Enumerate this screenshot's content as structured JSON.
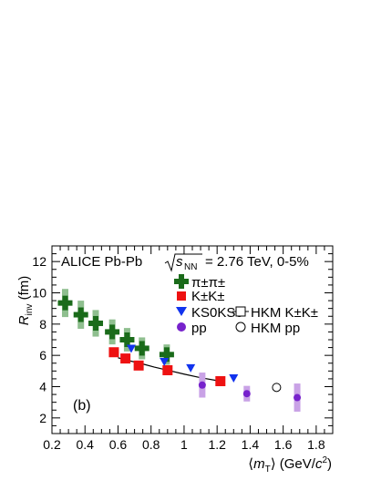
{
  "chart_data": {
    "type": "scatter",
    "title": "ALICE Pb-Pb",
    "energy_label": {
      "prefix": "s",
      "subscript": "NN",
      "value": "= 2.76 TeV, 0-5%"
    },
    "panel_label": "(b)",
    "xlabel": {
      "open": "⟨",
      "var": "m",
      "sub": "T",
      "close": "⟩ (GeV/",
      "unit_c": "c",
      "sup": "2",
      "end": ")"
    },
    "ylabel": {
      "var": "R",
      "sub": "inv",
      "unit": " (fm)"
    },
    "xlim": [
      0.2,
      1.9
    ],
    "ylim": [
      1,
      13
    ],
    "xticks": [
      "0.2",
      "0.4",
      "0.6",
      "0.8",
      "1",
      "1.2",
      "1.4",
      "1.6",
      "1.8"
    ],
    "yticks": [
      "2",
      "4",
      "6",
      "8",
      "10",
      "12"
    ],
    "legend": {
      "pion": "π±π±",
      "kaon_charged": "K±K±",
      "kaon_neutral": "KS0KS0",
      "pp": "pp",
      "hkm_kaon": "HKM K±K±",
      "hkm_pp": "HKM pp"
    },
    "series": [
      {
        "name": "π±π±",
        "marker": "cross",
        "color": "#1a6b1a",
        "syst_color": "#8fbf8f",
        "x": [
          0.28,
          0.375,
          0.465,
          0.565,
          0.655,
          0.745,
          0.895
        ],
        "y": [
          9.35,
          8.6,
          8.05,
          7.5,
          7.0,
          6.45,
          6.05
        ],
        "syst": [
          0.9,
          0.9,
          0.85,
          0.8,
          0.75,
          0.7,
          0.65
        ]
      },
      {
        "name": "K±K±",
        "marker": "square",
        "color": "#ee1111",
        "x": [
          0.575,
          0.645,
          0.725,
          0.9,
          1.22
        ],
        "y": [
          6.2,
          5.8,
          5.35,
          5.05,
          4.35
        ],
        "syst": [
          0.3,
          0.3,
          0.28,
          0.25,
          0.22
        ]
      },
      {
        "name": "KS0KS0",
        "marker": "triangle-down",
        "color": "#1133ee",
        "x": [
          0.68,
          0.88,
          1.04,
          1.3
        ],
        "y": [
          6.45,
          5.6,
          5.2,
          4.55
        ]
      },
      {
        "name": "pp",
        "marker": "circle",
        "color": "#7722cc",
        "syst_color": "#c9a2e6",
        "x": [
          1.11,
          1.38,
          1.685
        ],
        "y": [
          4.1,
          3.55,
          3.3
        ],
        "syst": [
          0.8,
          0.5,
          0.9
        ]
      },
      {
        "name": "HKM K±K±",
        "marker": "open-square",
        "color": "#000000",
        "x": [
          0.6,
          0.64,
          0.7,
          0.76,
          0.82,
          0.9,
          1.0,
          1.1,
          1.22
        ],
        "y": [
          5.85,
          5.72,
          5.58,
          5.42,
          5.25,
          5.05,
          4.8,
          4.57,
          4.35
        ]
      },
      {
        "name": "HKM pp",
        "marker": "open-circle",
        "color": "#000000",
        "x": [
          1.56
        ],
        "y": [
          3.95
        ]
      }
    ]
  }
}
